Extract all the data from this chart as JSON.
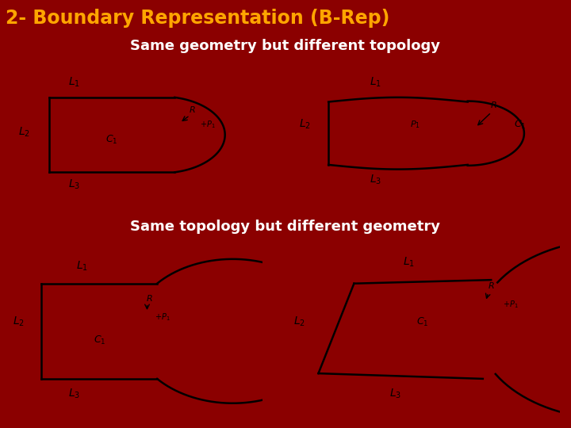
{
  "title": "2- Boundary Representation (B-Rep)",
  "subtitle1": "Same geometry but different topology",
  "subtitle2": "Same topology but different geometry",
  "bg_color": "#8B0000",
  "title_color": "#FFA500",
  "subtitle_color": "#FFFFFF",
  "title_fontsize": 17,
  "subtitle_fontsize": 13,
  "fig_width": 7.2,
  "fig_height": 5.4,
  "dpi": 100
}
